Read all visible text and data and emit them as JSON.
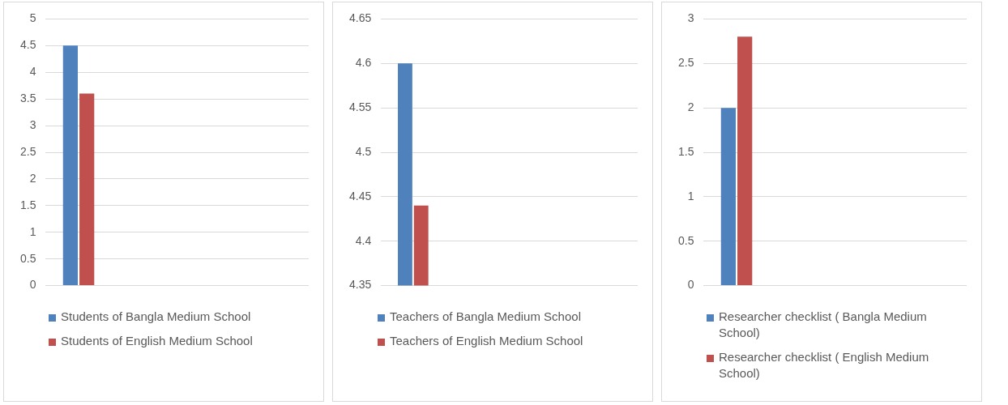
{
  "chart_data": [
    {
      "type": "bar",
      "categories": [
        null,
        null,
        null,
        null
      ],
      "series": [
        {
          "name": "Students of Bangla Medium School",
          "color": "#4f81bd",
          "values": [
            4.5,
            null,
            null,
            null
          ]
        },
        {
          "name": "Students of English Medium School",
          "color": "#c0504d",
          "values": [
            3.6,
            null,
            null,
            null
          ]
        }
      ],
      "ylim": [
        0,
        5
      ],
      "yticks": [
        0,
        0.5,
        1,
        1.5,
        2,
        2.5,
        3,
        3.5,
        4,
        4.5,
        5
      ],
      "grid": "y",
      "legend": "bottom"
    },
    {
      "type": "bar",
      "categories": [
        null,
        null,
        null,
        null
      ],
      "series": [
        {
          "name": "Teachers of Bangla Medium School",
          "color": "#4f81bd",
          "values": [
            4.6,
            null,
            null,
            null
          ]
        },
        {
          "name": "Teachers of English Medium School",
          "color": "#c0504d",
          "values": [
            4.44,
            null,
            null,
            null
          ]
        }
      ],
      "ylim": [
        4.35,
        4.65
      ],
      "yticks": [
        4.35,
        4.4,
        4.45,
        4.5,
        4.55,
        4.6,
        4.65
      ],
      "grid": "y",
      "legend": "bottom"
    },
    {
      "type": "bar",
      "categories": [
        null,
        null,
        null,
        null
      ],
      "series": [
        {
          "name": "Researcher checklist ( Bangla Medium School)",
          "color": "#4f81bd",
          "values": [
            2,
            null,
            null,
            null
          ]
        },
        {
          "name": "Researcher checklist ( English Medium School)",
          "color": "#c0504d",
          "values": [
            2.8,
            null,
            null,
            null
          ]
        }
      ],
      "ylim": [
        0,
        3
      ],
      "yticks": [
        0,
        0.5,
        1,
        1.5,
        2,
        2.5,
        3
      ],
      "grid": "y",
      "legend": "bottom"
    }
  ]
}
